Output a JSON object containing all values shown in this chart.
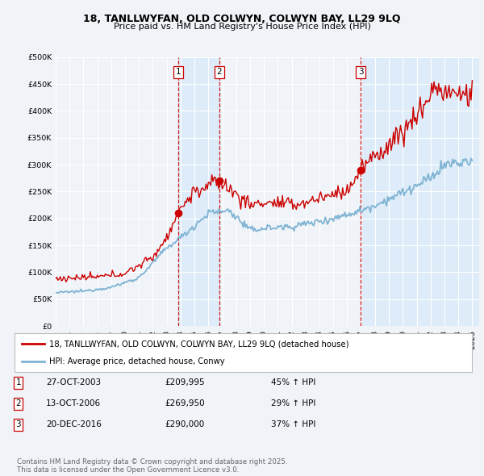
{
  "title_line1": "18, TANLLWYFAN, OLD COLWYN, COLWYN BAY, LL29 9LQ",
  "title_line2": "Price paid vs. HM Land Registry's House Price Index (HPI)",
  "legend_entry1": "18, TANLLWYFAN, OLD COLWYN, COLWYN BAY, LL29 9LQ (detached house)",
  "legend_entry2": "HPI: Average price, detached house, Conwy",
  "transactions": [
    {
      "num": 1,
      "date": "27-OCT-2003",
      "price": 209995,
      "pct": "45%",
      "direction": "↑",
      "year_dec": 2003.82
    },
    {
      "num": 2,
      "date": "13-OCT-2006",
      "price": 269950,
      "pct": "29%",
      "direction": "↑",
      "year_dec": 2006.78
    },
    {
      "num": 3,
      "date": "20-DEC-2016",
      "price": 290000,
      "pct": "37%",
      "direction": "↑",
      "year_dec": 2016.97
    }
  ],
  "hpi_color": "#7fb3d3",
  "hpi_fill_color": "#d6e9f8",
  "price_color": "#cc0000",
  "vline_color": "#cc0000",
  "background_color": "#f0f4f8",
  "grid_color": "#ffffff",
  "ylim": [
    0,
    500000
  ],
  "yticks": [
    0,
    50000,
    100000,
    150000,
    200000,
    250000,
    300000,
    350000,
    400000,
    450000,
    500000
  ],
  "xlim_start": 1995,
  "xlim_end": 2025.5,
  "footnote": "Contains HM Land Registry data © Crown copyright and database right 2025.\nThis data is licensed under the Open Government Licence v3.0."
}
